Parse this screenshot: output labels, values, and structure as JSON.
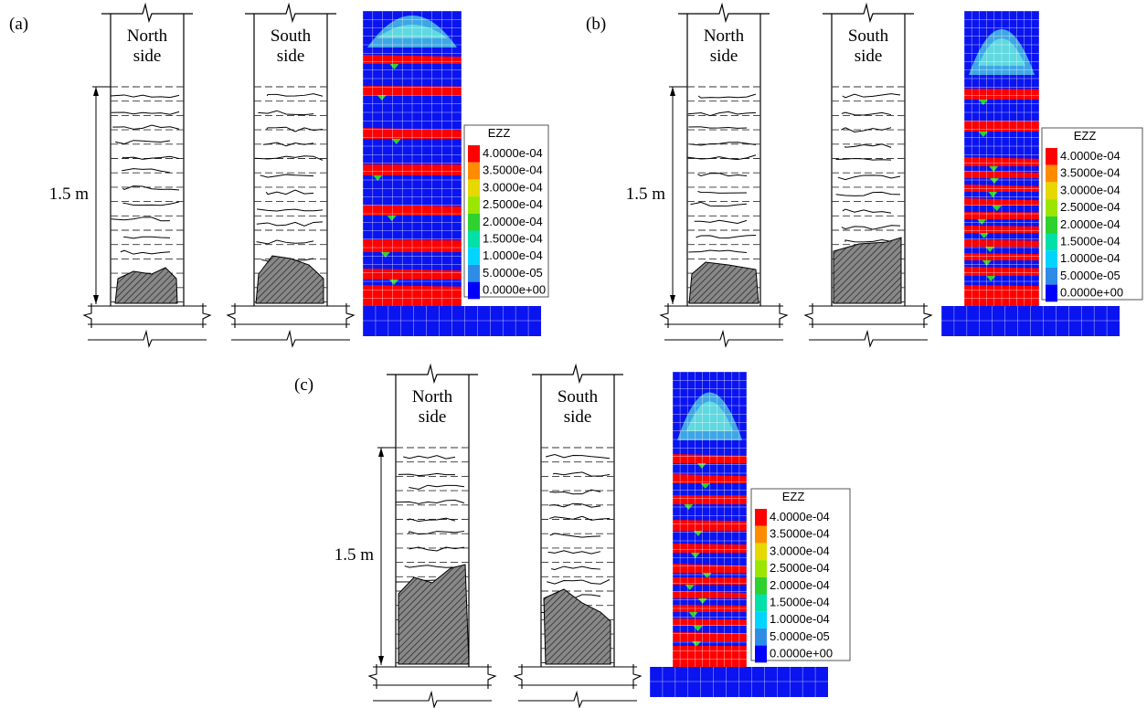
{
  "panels": [
    {
      "label": "(a)"
    },
    {
      "label": "(b)"
    },
    {
      "label": "(c)"
    }
  ],
  "north": [
    "North",
    "side"
  ],
  "south": [
    "South",
    "side"
  ],
  "height": "1.5 m",
  "legend": {
    "title": "EZZ",
    "labels": [
      "4.0000e-04",
      "3.5000e-04",
      "3.0000e-04",
      "2.5000e-04",
      "2.0000e-04",
      "1.5000e-04",
      "1.0000e-04",
      "5.0000e-05",
      "0.0000e+00"
    ]
  }
}
